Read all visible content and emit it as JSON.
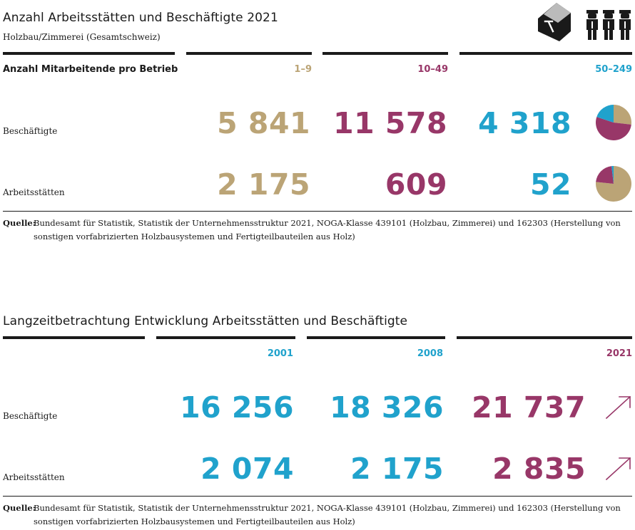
{
  "colors": {
    "gold": "#bba476",
    "purple": "#983768",
    "blue": "#20a2cc",
    "dark": "#1a1a1a"
  },
  "section1": {
    "title": "Anzahl Arbeitsstätten und Beschäftigte 2021",
    "subtitle": "Holzbau/Zimmerei (Gesamtschweiz)",
    "header_label": "Anzahl Mitarbeitende pro Betrieb",
    "icons": [
      "building-hammer-icon",
      "workers-icon"
    ],
    "columns": [
      "1–9",
      "10–49",
      "50–249"
    ],
    "rows": [
      {
        "label": "Beschäftigte",
        "values": [
          "5 841",
          "11 578",
          "4 318"
        ]
      },
      {
        "label": "Arbeitsstätten",
        "values": [
          "2 175",
          "609",
          "52"
        ]
      }
    ],
    "source_label": "Quelle:",
    "source_text": "Bundesamt für Statistik, Statistik der Unternehmensstruktur 2021, NOGA-Klasse 439101 (Holzbau, Zimmerei) und 162303 (Herstellung von sonstigen vorfabrizierten Holzbausystemen und Fertigteilbauteilen aus Holz)"
  },
  "section2": {
    "title": "Langzeitbetrachtung Entwicklung Arbeitsstätten und Beschäftigte",
    "columns": [
      "2001",
      "2008",
      "2021"
    ],
    "rows": [
      {
        "label": "Beschäftigte",
        "values": [
          "16 256",
          "18 326",
          "21 737"
        ],
        "trend": "up-right-arrow-icon"
      },
      {
        "label": "Arbeitsstätten",
        "values": [
          "2 074",
          "2 175",
          "2 835"
        ],
        "trend": "up-right-arrow-icon"
      }
    ],
    "source_label": "Quelle:",
    "source_text": "Bundesamt für Statistik, Statistik der Unternehmensstruktur 2021, NOGA-Klasse 439101 (Holzbau, Zimmerei) und 162303 (Herstellung von sonstigen vorfabrizierten Holzbausystemen und Fertigteilbauteilen aus Holz)"
  },
  "chart_data": [
    {
      "type": "pie",
      "categories": [
        "1–9",
        "10–49",
        "50–249"
      ],
      "values": [
        5841,
        11578,
        4318
      ],
      "title": "",
      "xlabel": "",
      "ylabel": ""
    },
    {
      "type": "pie",
      "categories": [
        "1–9",
        "10–49",
        "50–249"
      ],
      "values": [
        2175,
        609,
        52
      ],
      "title": "",
      "xlabel": "",
      "ylabel": ""
    }
  ]
}
